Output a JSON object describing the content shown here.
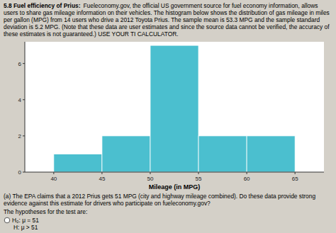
{
  "chart_data": {
    "type": "histogram",
    "title": "5.8 Fuel efficiency of Prius:",
    "subtitle": "Fueleconomy.gov, the official US government source for fuel economy information, allows users to share gas mileage information on their vehicles. The histogram below shows the distribution of gas mileage in miles per gallon (MPG) from 14 users who drive a 2012 Toyota Prius. The sample mean is 53.3 MPG and the sample standard deviation is 5.2 MPG. (Note that these data are user estimates and since the source data cannot be verified, the accuracy of these estimates is not guaranteed.) USE YOUR TI CALCULATOR.",
    "bins": [
      40,
      45,
      50,
      55,
      60,
      65
    ],
    "values": [
      1,
      2,
      7,
      2,
      2
    ],
    "color": "#4bbfcf",
    "xlabel": "Mileage (in MPG)",
    "xlim": [
      37,
      68
    ],
    "ylim": [
      0,
      7.2
    ],
    "xticks": [
      40,
      45,
      50,
      55,
      60,
      65
    ],
    "yticks": [
      0,
      2,
      4,
      6
    ],
    "grid": false,
    "annotations": [
      "(a) The EPA claims that a 2012 Prius gets 51 MPG (city and highway mileage combined). Do these data provide strong evidence against this estimate for drivers who participate on fueleconomy.gov?",
      "The hypotheses for the test are:",
      "H₀: μ = 51",
      "H⁡: μ > 51"
    ]
  }
}
